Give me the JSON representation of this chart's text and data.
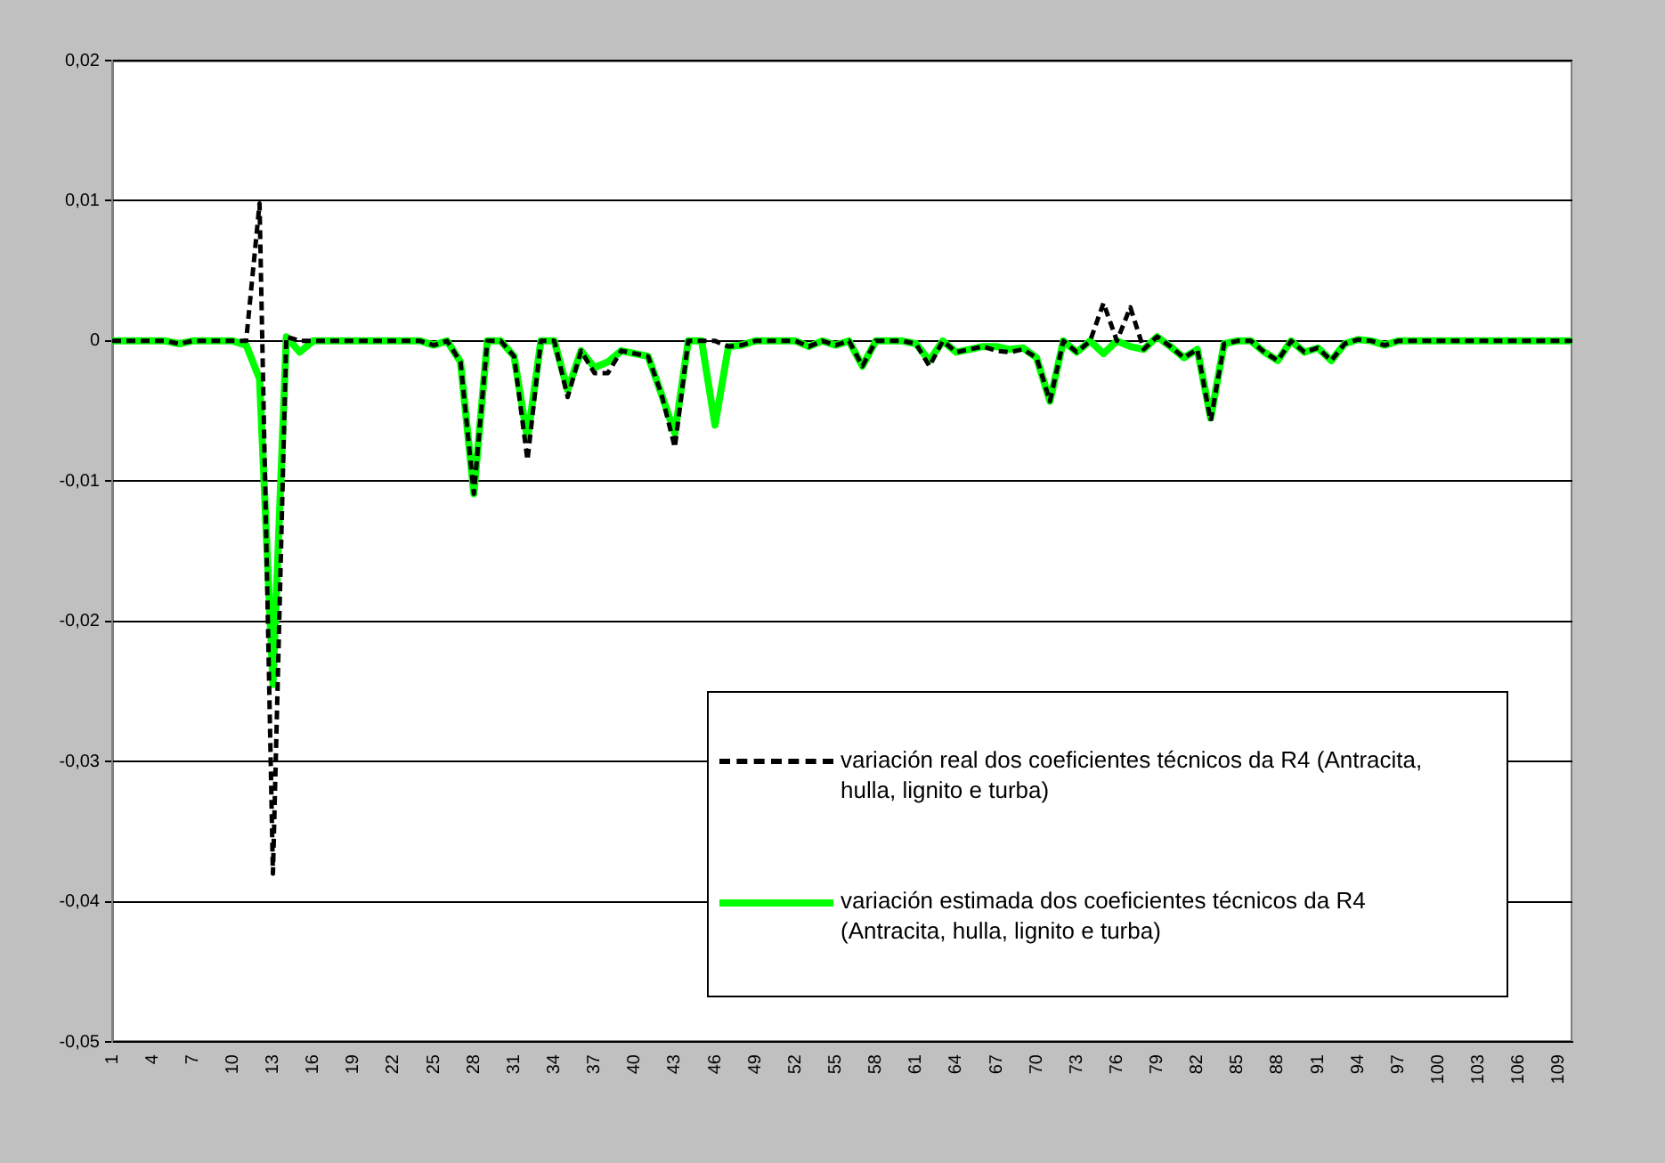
{
  "chart_data": {
    "type": "line",
    "categories": [
      "1",
      null,
      null,
      "4",
      null,
      null,
      "7",
      null,
      null,
      "10",
      null,
      null,
      "13",
      null,
      null,
      "16",
      null,
      null,
      "19",
      null,
      null,
      "22",
      null,
      null,
      "25",
      null,
      null,
      "28",
      null,
      null,
      "31",
      null,
      null,
      "34",
      null,
      null,
      "37",
      null,
      null,
      "40",
      null,
      null,
      "43",
      null,
      null,
      "46",
      null,
      null,
      "49",
      null,
      null,
      "52",
      null,
      null,
      "55",
      null,
      null,
      "58",
      null,
      null,
      "61",
      null,
      null,
      "64",
      null,
      null,
      "67",
      null,
      null,
      "70",
      null,
      null,
      "73",
      null,
      null,
      "76",
      null,
      null,
      "79",
      null,
      null,
      "82",
      null,
      null,
      "85",
      null,
      null,
      "88",
      null,
      null,
      "91",
      null,
      null,
      "94",
      null,
      null,
      "97",
      null,
      null,
      "100",
      null,
      null,
      "103",
      null,
      null,
      "106",
      null,
      null,
      "109",
      null
    ],
    "series": [
      {
        "name": "variación real dos coeficientes técnicos da R4 (Antracita, hulla, lignito e turba)",
        "color": "#000000",
        "line_style": "dashed",
        "values": [
          0,
          0,
          0,
          0,
          0,
          -0.0002,
          0,
          0,
          0,
          0,
          0,
          0.0098,
          -0.038,
          0.0003,
          0,
          0,
          0,
          0,
          0,
          0,
          0,
          0,
          0,
          0,
          -0.0003,
          0,
          -0.0015,
          -0.0109,
          0,
          0,
          -0.0011,
          -0.0085,
          0,
          0,
          -0.004,
          -0.0007,
          -0.0023,
          -0.0023,
          -0.0007,
          -0.0009,
          -0.0011,
          -0.0038,
          -0.0076,
          0,
          0,
          0,
          -0.0004,
          -0.0003,
          0,
          0,
          0,
          0,
          -0.0004,
          0,
          -0.0003,
          0,
          -0.0018,
          0,
          0,
          0,
          -0.0002,
          -0.0018,
          0,
          -0.0008,
          -0.0006,
          -0.0004,
          -0.0007,
          -0.0008,
          -0.0006,
          -0.0012,
          -0.0043,
          0,
          -0.0008,
          0,
          0.0027,
          0,
          0.0024,
          -0.0006,
          0.0003,
          -0.0004,
          -0.0012,
          -0.0006,
          -0.0057,
          -0.0002,
          0,
          0,
          -0.0008,
          -0.0014,
          0,
          -0.0008,
          -0.0005,
          -0.0014,
          -0.0002,
          0.0001,
          0,
          -0.0003,
          0,
          0,
          0,
          0,
          0,
          0,
          0,
          0,
          0,
          0,
          0,
          0,
          0,
          0
        ]
      },
      {
        "name": "variación estimada dos coeficientes técnicos da R4 (Antracita, hulla, lignito e turba)",
        "color": "#00ff00",
        "line_style": "solid",
        "values": [
          0,
          0,
          0,
          0,
          0,
          -0.0002,
          0,
          0,
          0,
          0,
          -0.0003,
          -0.0027,
          -0.0245,
          0.0003,
          -0.0008,
          0,
          0,
          0,
          0,
          0,
          0,
          0,
          0,
          0,
          -0.0003,
          0,
          -0.0015,
          -0.0109,
          0,
          0,
          -0.0011,
          -0.007,
          0,
          0,
          -0.0035,
          -0.0007,
          -0.0019,
          -0.0015,
          -0.0007,
          -0.0009,
          -0.0011,
          -0.0038,
          -0.0066,
          0,
          0,
          -0.006,
          -0.0004,
          -0.0003,
          0,
          0,
          0,
          0,
          -0.0004,
          0,
          -0.0003,
          0,
          -0.0018,
          0,
          0,
          0,
          -0.0002,
          -0.0014,
          0,
          -0.0008,
          -0.0006,
          -0.0004,
          -0.0004,
          -0.0006,
          -0.0005,
          -0.0012,
          -0.0043,
          0,
          -0.0008,
          0,
          -0.0009,
          0,
          -0.0004,
          -0.0006,
          0.0003,
          -0.0004,
          -0.0012,
          -0.0006,
          -0.0055,
          -0.0002,
          0,
          0,
          -0.0008,
          -0.0014,
          0,
          -0.0008,
          -0.0005,
          -0.0014,
          -0.0002,
          0.0001,
          0,
          -0.0003,
          0,
          0,
          0,
          0,
          0,
          0,
          0,
          0,
          0,
          0,
          0,
          0,
          0,
          0
        ]
      }
    ],
    "ylim": [
      -0.05,
      0.02
    ],
    "yticks": [
      {
        "value": 0.02,
        "label": "0,02"
      },
      {
        "value": 0.01,
        "label": "0,01"
      },
      0,
      {
        "value": -0.01,
        "label": "-0,01"
      },
      {
        "value": -0.02,
        "label": "-0,02"
      },
      {
        "value": -0.03,
        "label": "-0,03"
      },
      {
        "value": -0.04,
        "label": "-0,04"
      },
      {
        "value": -0.05,
        "label": "-0,05"
      }
    ],
    "grid": "y",
    "legend": "bottom right",
    "marker": "none"
  }
}
